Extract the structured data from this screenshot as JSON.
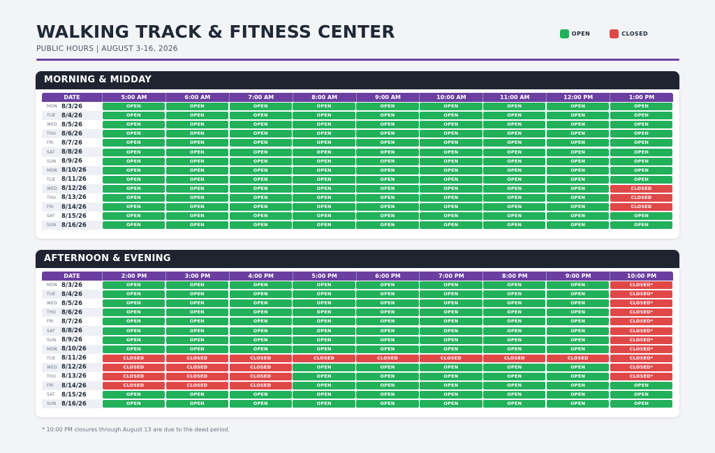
{
  "header": {
    "title": "WALKING TRACK & FITNESS CENTER",
    "subtitle": "PUBLIC HOURS  |  AUGUST 3-16, 2026"
  },
  "legend": [
    {
      "label": "OPEN",
      "color": "#22b05a"
    },
    {
      "label": "CLOSED",
      "color": "#e04848"
    }
  ],
  "colors": {
    "open": "#22b05a",
    "closed": "#e04848",
    "accent": "#6b3fa0",
    "panel_header": "#1f2430"
  },
  "dates": [
    {
      "dow": "MON",
      "date": "8/3/26"
    },
    {
      "dow": "TUE",
      "date": "8/4/26"
    },
    {
      "dow": "WED",
      "date": "8/5/26"
    },
    {
      "dow": "THU",
      "date": "8/6/26"
    },
    {
      "dow": "FRI",
      "date": "8/7/26"
    },
    {
      "dow": "SAT",
      "date": "8/8/26"
    },
    {
      "dow": "SUN",
      "date": "8/9/26"
    },
    {
      "dow": "MON",
      "date": "8/10/26"
    },
    {
      "dow": "TUE",
      "date": "8/11/26"
    },
    {
      "dow": "WED",
      "date": "8/12/26"
    },
    {
      "dow": "THU",
      "date": "8/13/26"
    },
    {
      "dow": "FRI",
      "date": "8/14/26"
    },
    {
      "dow": "SAT",
      "date": "8/15/26"
    },
    {
      "dow": "SUN",
      "date": "8/16/26"
    }
  ],
  "panels": [
    {
      "title": "MORNING & MIDDAY",
      "date_header": "DATE",
      "times": [
        "5:00 AM",
        "6:00 AM",
        "7:00 AM",
        "8:00 AM",
        "9:00 AM",
        "10:00 AM",
        "11:00 AM",
        "12:00 PM",
        "1:00 PM"
      ],
      "rows": [
        [
          "OPEN",
          "OPEN",
          "OPEN",
          "OPEN",
          "OPEN",
          "OPEN",
          "OPEN",
          "OPEN",
          "OPEN"
        ],
        [
          "OPEN",
          "OPEN",
          "OPEN",
          "OPEN",
          "OPEN",
          "OPEN",
          "OPEN",
          "OPEN",
          "OPEN"
        ],
        [
          "OPEN",
          "OPEN",
          "OPEN",
          "OPEN",
          "OPEN",
          "OPEN",
          "OPEN",
          "OPEN",
          "OPEN"
        ],
        [
          "OPEN",
          "OPEN",
          "OPEN",
          "OPEN",
          "OPEN",
          "OPEN",
          "OPEN",
          "OPEN",
          "OPEN"
        ],
        [
          "OPEN",
          "OPEN",
          "OPEN",
          "OPEN",
          "OPEN",
          "OPEN",
          "OPEN",
          "OPEN",
          "OPEN"
        ],
        [
          "OPEN",
          "OPEN",
          "OPEN",
          "OPEN",
          "OPEN",
          "OPEN",
          "OPEN",
          "OPEN",
          "OPEN"
        ],
        [
          "OPEN",
          "OPEN",
          "OPEN",
          "OPEN",
          "OPEN",
          "OPEN",
          "OPEN",
          "OPEN",
          "OPEN"
        ],
        [
          "OPEN",
          "OPEN",
          "OPEN",
          "OPEN",
          "OPEN",
          "OPEN",
          "OPEN",
          "OPEN",
          "OPEN"
        ],
        [
          "OPEN",
          "OPEN",
          "OPEN",
          "OPEN",
          "OPEN",
          "OPEN",
          "OPEN",
          "OPEN",
          "OPEN"
        ],
        [
          "OPEN",
          "OPEN",
          "OPEN",
          "OPEN",
          "OPEN",
          "OPEN",
          "OPEN",
          "OPEN",
          "CLOSED"
        ],
        [
          "OPEN",
          "OPEN",
          "OPEN",
          "OPEN",
          "OPEN",
          "OPEN",
          "OPEN",
          "OPEN",
          "CLOSED"
        ],
        [
          "OPEN",
          "OPEN",
          "OPEN",
          "OPEN",
          "OPEN",
          "OPEN",
          "OPEN",
          "OPEN",
          "CLOSED"
        ],
        [
          "OPEN",
          "OPEN",
          "OPEN",
          "OPEN",
          "OPEN",
          "OPEN",
          "OPEN",
          "OPEN",
          "OPEN"
        ],
        [
          "OPEN",
          "OPEN",
          "OPEN",
          "OPEN",
          "OPEN",
          "OPEN",
          "OPEN",
          "OPEN",
          "OPEN"
        ]
      ]
    },
    {
      "title": "AFTERNOON & EVENING",
      "date_header": "DATE",
      "times": [
        "2:00 PM",
        "3:00 PM",
        "4:00 PM",
        "5:00 PM",
        "6:00 PM",
        "7:00 PM",
        "8:00 PM",
        "9:00 PM",
        "10:00 PM"
      ],
      "rows": [
        [
          "OPEN",
          "OPEN",
          "OPEN",
          "OPEN",
          "OPEN",
          "OPEN",
          "OPEN",
          "OPEN",
          "CLOSED*"
        ],
        [
          "OPEN",
          "OPEN",
          "OPEN",
          "OPEN",
          "OPEN",
          "OPEN",
          "OPEN",
          "OPEN",
          "CLOSED*"
        ],
        [
          "OPEN",
          "OPEN",
          "OPEN",
          "OPEN",
          "OPEN",
          "OPEN",
          "OPEN",
          "OPEN",
          "CLOSED*"
        ],
        [
          "OPEN",
          "OPEN",
          "OPEN",
          "OPEN",
          "OPEN",
          "OPEN",
          "OPEN",
          "OPEN",
          "CLOSED*"
        ],
        [
          "OPEN",
          "OPEN",
          "OPEN",
          "OPEN",
          "OPEN",
          "OPEN",
          "OPEN",
          "OPEN",
          "CLOSED*"
        ],
        [
          "OPEN",
          "OPEN",
          "OPEN",
          "OPEN",
          "OPEN",
          "OPEN",
          "OPEN",
          "OPEN",
          "CLOSED*"
        ],
        [
          "OPEN",
          "OPEN",
          "OPEN",
          "OPEN",
          "OPEN",
          "OPEN",
          "OPEN",
          "OPEN",
          "CLOSED*"
        ],
        [
          "OPEN",
          "OPEN",
          "OPEN",
          "OPEN",
          "OPEN",
          "OPEN",
          "OPEN",
          "OPEN",
          "CLOSED*"
        ],
        [
          "CLOSED",
          "CLOSED",
          "CLOSED",
          "CLOSED",
          "CLOSED",
          "CLOSED",
          "CLOSED",
          "CLOSED",
          "CLOSED*"
        ],
        [
          "CLOSED",
          "CLOSED",
          "CLOSED",
          "OPEN",
          "OPEN",
          "OPEN",
          "OPEN",
          "OPEN",
          "CLOSED*"
        ],
        [
          "CLOSED",
          "CLOSED",
          "CLOSED",
          "OPEN",
          "OPEN",
          "OPEN",
          "OPEN",
          "OPEN",
          "CLOSED*"
        ],
        [
          "CLOSED",
          "CLOSED",
          "CLOSED",
          "OPEN",
          "OPEN",
          "OPEN",
          "OPEN",
          "OPEN",
          "OPEN"
        ],
        [
          "OPEN",
          "OPEN",
          "OPEN",
          "OPEN",
          "OPEN",
          "OPEN",
          "OPEN",
          "OPEN",
          "OPEN"
        ],
        [
          "OPEN",
          "OPEN",
          "OPEN",
          "OPEN",
          "OPEN",
          "OPEN",
          "OPEN",
          "OPEN",
          "OPEN"
        ]
      ]
    }
  ],
  "footnote": "* 10:00 PM closures through August 13 are due to the dead period."
}
